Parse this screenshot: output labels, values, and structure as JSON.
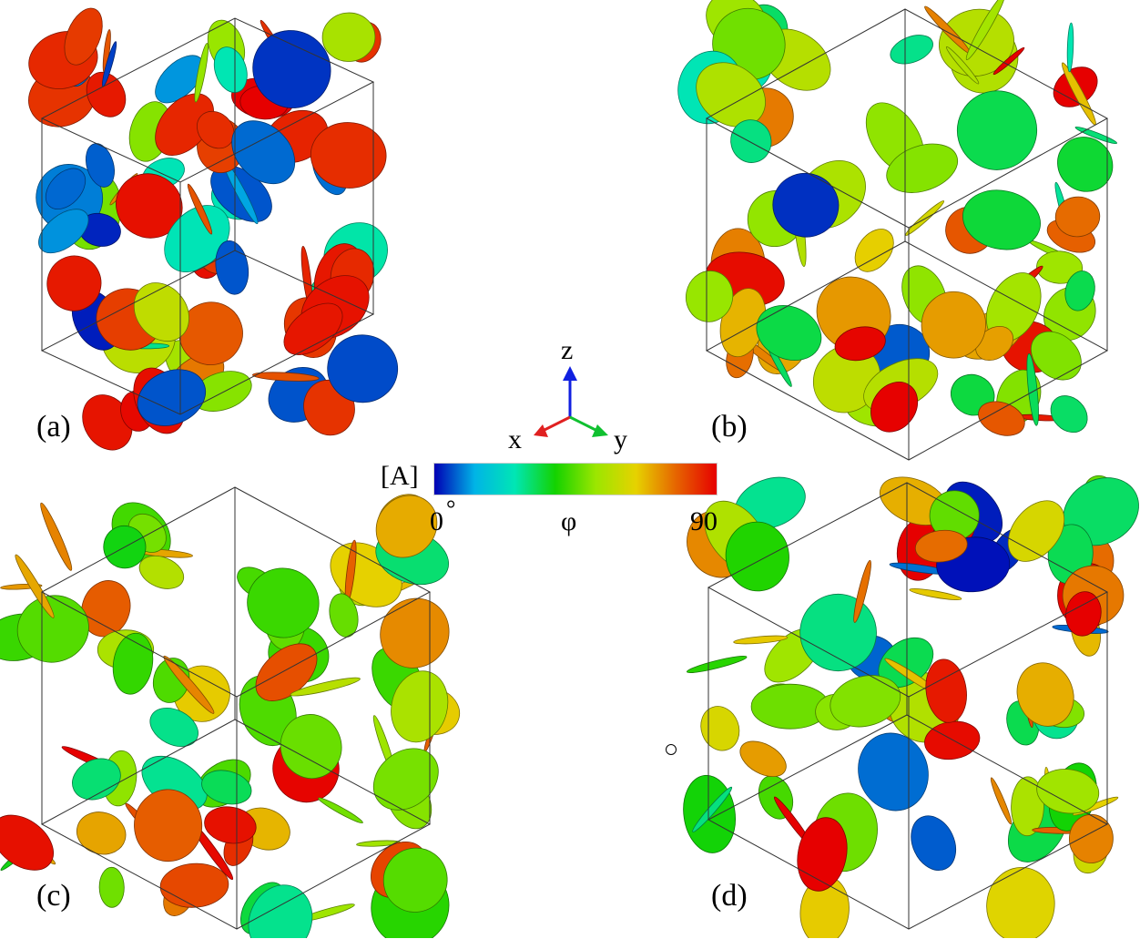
{
  "panels": [
    {
      "label": "(a)"
    },
    {
      "label": "(b)"
    },
    {
      "label": "(c)"
    },
    {
      "label": "(d)"
    }
  ],
  "axes": {
    "z": "z",
    "x": "x",
    "y": "y",
    "colors": {
      "x": "#e02020",
      "y": "#10c030",
      "z": "#1020e0"
    }
  },
  "legend": {
    "title": "[A]",
    "min_label": "0",
    "degree": "°",
    "symbol": "φ",
    "max_label": "90",
    "colormap": [
      "#0000b4",
      "#00b4e6",
      "#00e6b4",
      "#14d200",
      "#9be600",
      "#e6d200",
      "#e66400",
      "#e60000"
    ]
  }
}
